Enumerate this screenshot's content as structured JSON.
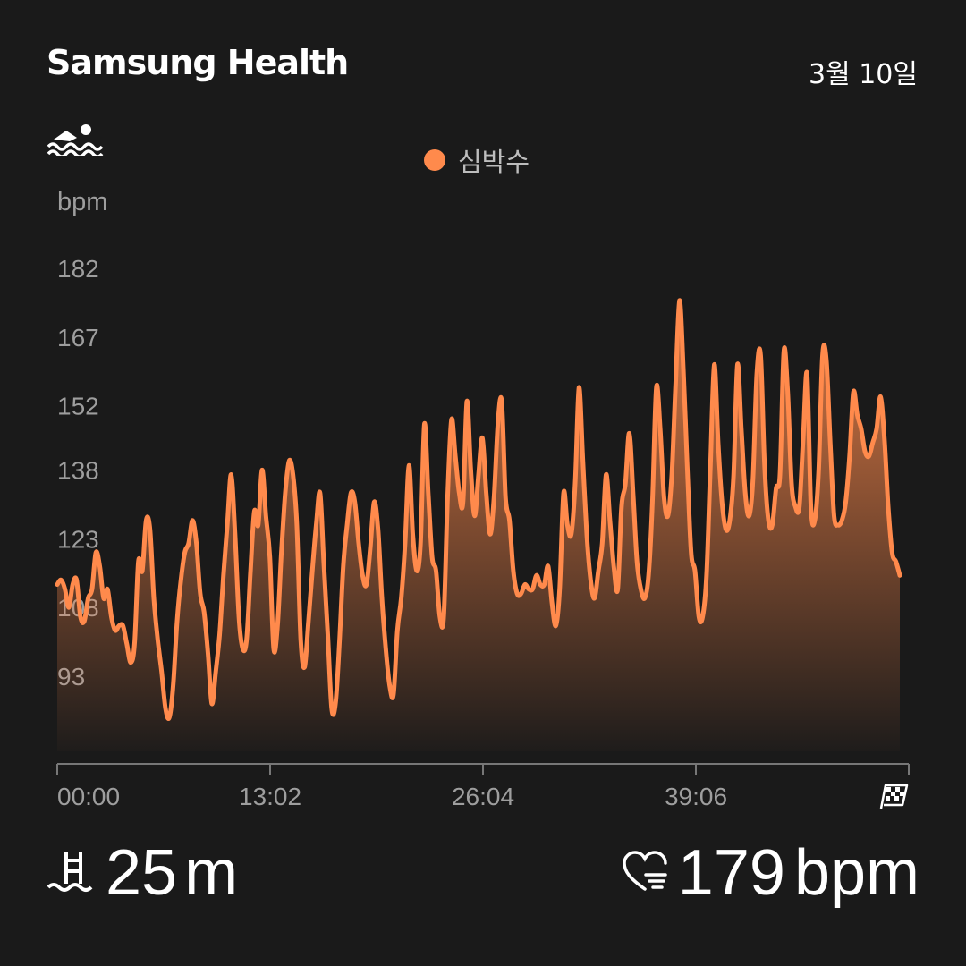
{
  "header": {
    "title": "Samsung Health",
    "date": "3월 10일"
  },
  "workout": {
    "icon": "swimming-icon"
  },
  "legend": {
    "label": "심박수",
    "color": "#ff8a4c"
  },
  "stats": {
    "pool_length": {
      "icon": "pool-ladder-icon",
      "value": "25",
      "unit": "m"
    },
    "max_heart_rate": {
      "icon": "heart-rate-icon",
      "value": "179",
      "unit": "bpm"
    }
  },
  "chart_data": {
    "type": "area",
    "ylabel": "bpm",
    "y_ticks": [
      93,
      108,
      123,
      138,
      152,
      167,
      182
    ],
    "ylim": [
      78,
      185
    ],
    "x_ticks": [
      "00:00",
      "13:02",
      "26:04",
      "39:06"
    ],
    "xlim_seconds": [
      0,
      3130
    ],
    "finish_icon": "finish-flag-icon",
    "line_color": "#ff8a4c",
    "series": [
      {
        "values": [
          113,
          114,
          112,
          108,
          113,
          114,
          106,
          105,
          110,
          112,
          120,
          117,
          110,
          112,
          106,
          103,
          104,
          104,
          100,
          96,
          100,
          118,
          116,
          127,
          125,
          110,
          101,
          94,
          86,
          84,
          91,
          105,
          114,
          120,
          122,
          127,
          122,
          111,
          107,
          98,
          87,
          94,
          102,
          115,
          126,
          137,
          124,
          106,
          99,
          101,
          116,
          129,
          126,
          138,
          128,
          119,
          99,
          104,
          120,
          133,
          140,
          137,
          126,
          101,
          95,
          105,
          116,
          126,
          133,
          117,
          102,
          86,
          87,
          100,
          117,
          126,
          133,
          131,
          122,
          115,
          113,
          121,
          131,
          125,
          110,
          99,
          91,
          89,
          103,
          110,
          122,
          139,
          124,
          116,
          122,
          148,
          133,
          119,
          116,
          106,
          106,
          132,
          149,
          141,
          133,
          131,
          153,
          138,
          128,
          137,
          145,
          133,
          124,
          132,
          148,
          153,
          132,
          127,
          116,
          111,
          111,
          113,
          112,
          112,
          115,
          113,
          113,
          117,
          109,
          104,
          112,
          133,
          126,
          124,
          135,
          156,
          140,
          124,
          114,
          110,
          116,
          122,
          137,
          127,
          117,
          112,
          130,
          135,
          146,
          133,
          118,
          112,
          110,
          115,
          131,
          156,
          147,
          132,
          128,
          137,
          157,
          175,
          160,
          139,
          120,
          116,
          106,
          106,
          115,
          139,
          161,
          144,
          131,
          125,
          127,
          137,
          161,
          147,
          133,
          128,
          136,
          159,
          163,
          139,
          127,
          126,
          134,
          137,
          164,
          155,
          135,
          130,
          130,
          145,
          159,
          130,
          127,
          138,
          163,
          162,
          144,
          128,
          126,
          127,
          131,
          141,
          155,
          150,
          147,
          142,
          141,
          144,
          147,
          154,
          145,
          130,
          120,
          118,
          115
        ]
      }
    ]
  }
}
